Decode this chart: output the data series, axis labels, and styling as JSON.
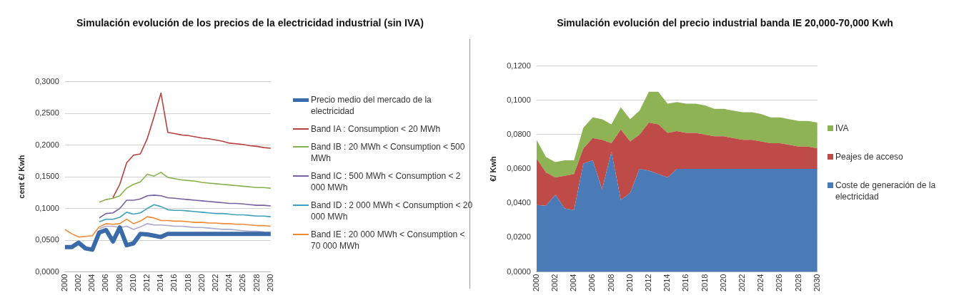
{
  "chart_data": [
    {
      "type": "line",
      "title": "Simulación evolución de los precios de la electricidad industrial (sin IVA)",
      "ylabel": "cent €/ Kwh",
      "categories": [
        "2000",
        null,
        "2002",
        null,
        "2004",
        null,
        "2006",
        null,
        "2008",
        null,
        "2010",
        null,
        "2012",
        null,
        "2014",
        null,
        "2016",
        null,
        "2018",
        null,
        "2020",
        null,
        "2022",
        null,
        "2024",
        null,
        "2026",
        null,
        "2028",
        null,
        "2030"
      ],
      "ylim": [
        0,
        0.3
      ],
      "yticks": [
        {
          "value": 0,
          "label": "0,0000"
        },
        {
          "value": 0.05,
          "label": "0,0500"
        },
        {
          "value": 0.1,
          "label": "0,1000"
        },
        {
          "value": 0.15,
          "label": "0,1500"
        },
        {
          "value": 0.2,
          "label": "0,2000"
        },
        {
          "value": 0.25,
          "label": "0,2500"
        },
        {
          "value": 0.3,
          "label": "0,3000"
        }
      ],
      "grid": "y",
      "legend": "right",
      "marker": "none",
      "series": [
        {
          "name": "Precio medio del mercado de la electricidad",
          "color": "#3a6aa8",
          "values": [
            0.039,
            0.039,
            0.046,
            0.037,
            0.035,
            0.062,
            0.066,
            0.048,
            0.07,
            0.042,
            0.045,
            0.06,
            0.059,
            0.057,
            0.055,
            0.06,
            0.06,
            0.06,
            0.06,
            0.06,
            0.06,
            0.06,
            0.06,
            0.06,
            0.06,
            0.06,
            0.06,
            0.06,
            0.06,
            0.06,
            0.06
          ]
        },
        {
          "name": "Band IA : Consumption < 20 MWh",
          "color": "#b5403c",
          "values": [
            null,
            null,
            null,
            null,
            null,
            null,
            null,
            0.117,
            0.138,
            0.172,
            0.184,
            0.186,
            0.21,
            0.245,
            0.282,
            0.22,
            0.218,
            0.216,
            0.215,
            0.213,
            0.211,
            0.21,
            0.208,
            0.206,
            0.203,
            0.202,
            0.201,
            0.199,
            0.198,
            0.196,
            0.195
          ]
        },
        {
          "name": "Band IB : 20 MWh < Consumption < 500 MWh",
          "color": "#86b04a",
          "values": [
            null,
            null,
            null,
            null,
            null,
            0.11,
            0.114,
            0.116,
            0.12,
            0.132,
            0.138,
            0.142,
            0.154,
            0.151,
            0.157,
            0.149,
            0.147,
            0.145,
            0.144,
            0.143,
            0.141,
            0.14,
            0.139,
            0.138,
            0.137,
            0.136,
            0.135,
            0.134,
            0.133,
            0.133,
            0.132
          ]
        },
        {
          "name": "Band IC : 500 MWh < Consumption < 2 000 MWh",
          "color": "#7660a0",
          "values": [
            null,
            null,
            null,
            null,
            null,
            0.085,
            0.092,
            0.093,
            0.1,
            0.113,
            0.113,
            0.115,
            0.12,
            0.121,
            0.12,
            0.117,
            0.116,
            0.115,
            0.114,
            0.113,
            0.112,
            0.111,
            0.11,
            0.109,
            0.108,
            0.108,
            0.107,
            0.106,
            0.105,
            0.105,
            0.104
          ]
        },
        {
          "name": "Band ID : 2 000 MWh < Consumption < 20 000 MWh",
          "color": "#3fa0b8",
          "values": [
            null,
            null,
            null,
            null,
            null,
            0.079,
            0.083,
            0.083,
            0.086,
            0.094,
            0.091,
            0.093,
            0.1,
            0.106,
            0.103,
            0.098,
            0.097,
            0.097,
            0.096,
            0.095,
            0.094,
            0.093,
            0.092,
            0.092,
            0.091,
            0.09,
            0.09,
            0.089,
            0.088,
            0.088,
            0.087
          ]
        },
        {
          "name": "Band IE : 20 000 MWh < Consumption < 70 000 MWh",
          "color": "#ee8a36",
          "values": [
            0.067,
            0.06,
            0.055,
            0.056,
            0.057,
            0.071,
            0.076,
            0.075,
            0.076,
            0.083,
            0.076,
            0.08,
            0.087,
            0.085,
            0.081,
            0.081,
            0.08,
            0.08,
            0.079,
            0.078,
            0.078,
            0.077,
            0.077,
            0.076,
            0.076,
            0.075,
            0.075,
            0.074,
            0.073,
            0.073,
            0.072
          ]
        },
        {
          "color": "#a9a6d0",
          "values": [
            null,
            null,
            null,
            null,
            null,
            0.068,
            0.072,
            0.072,
            0.07,
            0.072,
            0.067,
            0.071,
            0.076,
            0.074,
            0.074,
            0.073,
            0.072,
            0.072,
            0.071,
            0.07,
            0.07,
            0.069,
            0.068,
            0.067,
            0.067,
            0.066,
            0.065,
            0.064,
            0.064,
            0.063,
            null
          ]
        }
      ]
    },
    {
      "type": "area",
      "stacked": true,
      "title": "Simulación evolución del precio industrial banda IE 20,000-70,000 Kwh",
      "ylabel": "€/ Kwh",
      "categories": [
        "2000",
        null,
        "2002",
        null,
        "2004",
        null,
        "2006",
        null,
        "2008",
        null,
        "2010",
        null,
        "2012",
        null,
        "2014",
        null,
        "2016",
        null,
        "2018",
        null,
        "2020",
        null,
        "2022",
        null,
        "2024",
        null,
        "2026",
        null,
        "2028",
        null,
        "2030"
      ],
      "ylim": [
        0,
        0.12
      ],
      "yticks": [
        {
          "value": 0,
          "label": "0,0000"
        },
        {
          "value": 0.02,
          "label": "0,0200"
        },
        {
          "value": 0.04,
          "label": "0,0400"
        },
        {
          "value": 0.06,
          "label": "0,0600"
        },
        {
          "value": 0.08,
          "label": "0,0800"
        },
        {
          "value": 0.1,
          "label": "0,1000"
        },
        {
          "value": 0.12,
          "label": "0,1200"
        }
      ],
      "grid": "y",
      "legend": "right",
      "series": [
        {
          "name": "Coste de generación de la electricidad",
          "color": "#4a7bb7",
          "values": [
            0.039,
            0.0385,
            0.045,
            0.037,
            0.036,
            0.063,
            0.065,
            0.048,
            0.07,
            0.042,
            0.046,
            0.06,
            0.059,
            0.057,
            0.055,
            0.06,
            0.06,
            0.06,
            0.06,
            0.06,
            0.06,
            0.06,
            0.06,
            0.06,
            0.06,
            0.06,
            0.06,
            0.06,
            0.06,
            0.06,
            0.06
          ]
        },
        {
          "name": "Peajes de acceso",
          "color": "#be4b48",
          "values": [
            0.027,
            0.0195,
            0.01,
            0.019,
            0.021,
            0.009,
            0.013,
            0.029,
            0.005,
            0.041,
            0.03,
            0.02,
            0.028,
            0.029,
            0.026,
            0.022,
            0.021,
            0.021,
            0.02,
            0.019,
            0.019,
            0.018,
            0.017,
            0.017,
            0.016,
            0.015,
            0.015,
            0.014,
            0.013,
            0.013,
            0.012
          ]
        },
        {
          "name": "IVA",
          "color": "#8db354",
          "values": [
            0.011,
            0.009,
            0.009,
            0.009,
            0.008,
            0.012,
            0.012,
            0.012,
            0.011,
            0.013,
            0.013,
            0.014,
            0.018,
            0.019,
            0.017,
            0.017,
            0.017,
            0.017,
            0.017,
            0.016,
            0.016,
            0.016,
            0.016,
            0.016,
            0.016,
            0.015,
            0.015,
            0.015,
            0.015,
            0.015,
            0.015
          ]
        }
      ]
    }
  ]
}
